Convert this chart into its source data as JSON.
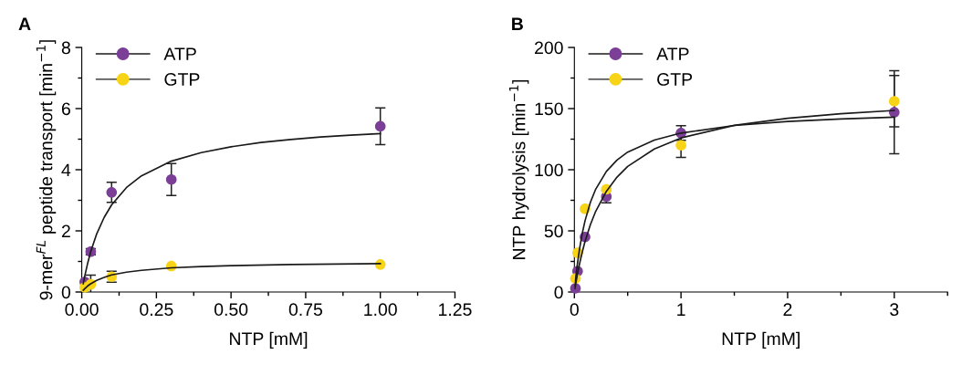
{
  "chart_data": [
    {
      "type": "scatter",
      "title": "A",
      "xlabel": "NTP [mM]",
      "ylabel": "9-mer$^{FL}$ peptide transport [min$^{−1}$]",
      "xlim": [
        0,
        1.25
      ],
      "xticks": [
        {
          "value": 0,
          "label": "0.00"
        },
        {
          "value": 0.125,
          "label": null
        },
        {
          "value": 0.25,
          "label": "0.25"
        },
        {
          "value": 0.375,
          "label": null
        },
        {
          "value": 0.5,
          "label": "0.50"
        },
        {
          "value": 0.625,
          "label": null
        },
        {
          "value": 0.75,
          "label": "0.75"
        },
        {
          "value": 0.875,
          "label": null
        },
        {
          "value": 1,
          "label": "1.00"
        },
        {
          "value": 1.125,
          "label": null
        },
        {
          "value": 1.25,
          "label": "1.25"
        }
      ],
      "ylim": [
        0,
        8
      ],
      "yticks": [
        0,
        {
          "value": 1,
          "label": null
        },
        2,
        {
          "value": 3,
          "label": null
        },
        4,
        {
          "value": 5,
          "label": null
        },
        6,
        {
          "value": 7,
          "label": null
        },
        8
      ],
      "legend": "top left",
      "marker": "circle",
      "grid": false,
      "series": [
        {
          "name": "ATP",
          "color": "#7b3f98",
          "x": [
            0.01,
            0.03,
            0.1,
            0.3,
            1.0
          ],
          "values": [
            0.33,
            1.32,
            3.26,
            3.68,
            5.42
          ],
          "errors": [
            null,
            0.1,
            0.33,
            0.52,
            0.6
          ]
        },
        {
          "name": "GTP",
          "color": "#f7d417",
          "x": [
            0.01,
            0.03,
            0.1,
            0.3,
            1.0
          ],
          "values": [
            0.15,
            0.25,
            0.5,
            0.85,
            0.9
          ],
          "errors": [
            null,
            0.3,
            0.18,
            null,
            null
          ]
        },
        {
          "type": "line",
          "marker": "none",
          "color": "#1a1a1a",
          "x": [
            0.005,
            0.01,
            0.02,
            0.03,
            0.05,
            0.075,
            0.1,
            0.15,
            0.2,
            0.3,
            0.4,
            0.5,
            0.6,
            0.7,
            0.8,
            0.9,
            1.0
          ],
          "values": [
            0.27,
            0.52,
            0.95,
            1.32,
            1.9,
            2.44,
            2.85,
            3.42,
            3.8,
            4.28,
            4.56,
            4.75,
            4.89,
            4.99,
            5.07,
            5.13,
            5.18
          ]
        },
        {
          "type": "line",
          "marker": "none",
          "color": "#1a1a1a",
          "x": [
            0.005,
            0.01,
            0.02,
            0.03,
            0.05,
            0.075,
            0.1,
            0.15,
            0.2,
            0.3,
            0.4,
            0.5,
            0.7,
            1.0
          ],
          "values": [
            0.06,
            0.11,
            0.2,
            0.27,
            0.38,
            0.48,
            0.56,
            0.65,
            0.71,
            0.79,
            0.83,
            0.86,
            0.9,
            0.93
          ]
        }
      ]
    },
    {
      "type": "scatter",
      "title": "B",
      "xlabel": "NTP [mM]",
      "ylabel": "NTP hydrolysis [min$^{−1}$]",
      "xlim": [
        0,
        3.5
      ],
      "xticks": [
        0,
        {
          "value": 0.5,
          "label": null
        },
        1,
        {
          "value": 1.5,
          "label": null
        },
        2,
        {
          "value": 2.5,
          "label": null
        },
        3,
        {
          "value": 3.5,
          "label": null
        }
      ],
      "ylim": [
        0,
        200
      ],
      "yticks": [
        0,
        {
          "value": 25,
          "label": null
        },
        50,
        {
          "value": 75,
          "label": null
        },
        100,
        {
          "value": 125,
          "label": null
        },
        150,
        {
          "value": 175,
          "label": null
        },
        200
      ],
      "legend": "top left",
      "marker": "circle",
      "grid": false,
      "series": [
        {
          "name": "ATP",
          "color": "#7b3f98",
          "x": [
            0.01,
            0.03,
            0.1,
            0.3,
            1.0,
            3.0
          ],
          "values": [
            3,
            17,
            45,
            78,
            130,
            147
          ],
          "errors": [
            null,
            null,
            null,
            5,
            6,
            34
          ]
        },
        {
          "name": "GTP",
          "color": "#f7d417",
          "x": [
            0.01,
            0.03,
            0.1,
            0.3,
            1.0,
            3.0
          ],
          "values": [
            11,
            32,
            68,
            84,
            120,
            156
          ],
          "errors": [
            null,
            null,
            null,
            null,
            10,
            21
          ]
        },
        {
          "type": "line",
          "marker": "none",
          "color": "#1a1a1a",
          "x": [
            0.005,
            0.01,
            0.02,
            0.03,
            0.05,
            0.075,
            0.1,
            0.15,
            0.2,
            0.3,
            0.4,
            0.5,
            0.75,
            1,
            1.5,
            2,
            2.5,
            3
          ],
          "values": [
            2.7,
            5.4,
            10.4,
            15.1,
            23.7,
            33,
            41.4,
            55,
            66,
            82.3,
            94,
            102.7,
            117,
            126,
            136.3,
            142.1,
            145.8,
            148.5
          ]
        },
        {
          "type": "line",
          "marker": "none",
          "color": "#1a1a1a",
          "x": [
            0.005,
            0.01,
            0.02,
            0.03,
            0.05,
            0.075,
            0.1,
            0.15,
            0.2,
            0.3,
            0.4,
            0.5,
            0.75,
            1,
            1.5,
            2,
            2.5,
            3
          ],
          "values": [
            4.6,
            9,
            17.3,
            24,
            36.1,
            48.4,
            58.3,
            73.3,
            84.1,
            98.6,
            107.9,
            114.4,
            124.3,
            130,
            136.2,
            139.5,
            141.5,
            143
          ]
        }
      ]
    }
  ]
}
